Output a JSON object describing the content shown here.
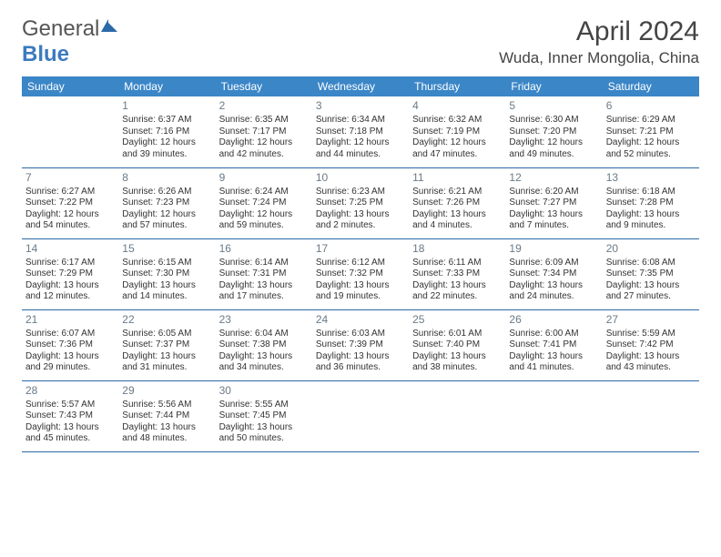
{
  "brand": {
    "part1": "General",
    "part2": "Blue"
  },
  "title": "April 2024",
  "location": "Wuda, Inner Mongolia, China",
  "colors": {
    "header_bg": "#3b86c7",
    "header_text": "#ffffff",
    "row_border": "#2b6aa8",
    "daynum_color": "#6a7a87",
    "body_text": "#333333",
    "brand_gray": "#555555",
    "brand_blue": "#3b7bbf"
  },
  "typography": {
    "base_font": "Arial",
    "title_size_pt": 22,
    "location_size_pt": 13,
    "header_size_pt": 9,
    "cell_size_pt": 7.5
  },
  "days_of_week": [
    "Sunday",
    "Monday",
    "Tuesday",
    "Wednesday",
    "Thursday",
    "Friday",
    "Saturday"
  ],
  "weeks": [
    [
      null,
      {
        "n": "1",
        "sr": "Sunrise: 6:37 AM",
        "ss": "Sunset: 7:16 PM",
        "dl": "Daylight: 12 hours and 39 minutes."
      },
      {
        "n": "2",
        "sr": "Sunrise: 6:35 AM",
        "ss": "Sunset: 7:17 PM",
        "dl": "Daylight: 12 hours and 42 minutes."
      },
      {
        "n": "3",
        "sr": "Sunrise: 6:34 AM",
        "ss": "Sunset: 7:18 PM",
        "dl": "Daylight: 12 hours and 44 minutes."
      },
      {
        "n": "4",
        "sr": "Sunrise: 6:32 AM",
        "ss": "Sunset: 7:19 PM",
        "dl": "Daylight: 12 hours and 47 minutes."
      },
      {
        "n": "5",
        "sr": "Sunrise: 6:30 AM",
        "ss": "Sunset: 7:20 PM",
        "dl": "Daylight: 12 hours and 49 minutes."
      },
      {
        "n": "6",
        "sr": "Sunrise: 6:29 AM",
        "ss": "Sunset: 7:21 PM",
        "dl": "Daylight: 12 hours and 52 minutes."
      }
    ],
    [
      {
        "n": "7",
        "sr": "Sunrise: 6:27 AM",
        "ss": "Sunset: 7:22 PM",
        "dl": "Daylight: 12 hours and 54 minutes."
      },
      {
        "n": "8",
        "sr": "Sunrise: 6:26 AM",
        "ss": "Sunset: 7:23 PM",
        "dl": "Daylight: 12 hours and 57 minutes."
      },
      {
        "n": "9",
        "sr": "Sunrise: 6:24 AM",
        "ss": "Sunset: 7:24 PM",
        "dl": "Daylight: 12 hours and 59 minutes."
      },
      {
        "n": "10",
        "sr": "Sunrise: 6:23 AM",
        "ss": "Sunset: 7:25 PM",
        "dl": "Daylight: 13 hours and 2 minutes."
      },
      {
        "n": "11",
        "sr": "Sunrise: 6:21 AM",
        "ss": "Sunset: 7:26 PM",
        "dl": "Daylight: 13 hours and 4 minutes."
      },
      {
        "n": "12",
        "sr": "Sunrise: 6:20 AM",
        "ss": "Sunset: 7:27 PM",
        "dl": "Daylight: 13 hours and 7 minutes."
      },
      {
        "n": "13",
        "sr": "Sunrise: 6:18 AM",
        "ss": "Sunset: 7:28 PM",
        "dl": "Daylight: 13 hours and 9 minutes."
      }
    ],
    [
      {
        "n": "14",
        "sr": "Sunrise: 6:17 AM",
        "ss": "Sunset: 7:29 PM",
        "dl": "Daylight: 13 hours and 12 minutes."
      },
      {
        "n": "15",
        "sr": "Sunrise: 6:15 AM",
        "ss": "Sunset: 7:30 PM",
        "dl": "Daylight: 13 hours and 14 minutes."
      },
      {
        "n": "16",
        "sr": "Sunrise: 6:14 AM",
        "ss": "Sunset: 7:31 PM",
        "dl": "Daylight: 13 hours and 17 minutes."
      },
      {
        "n": "17",
        "sr": "Sunrise: 6:12 AM",
        "ss": "Sunset: 7:32 PM",
        "dl": "Daylight: 13 hours and 19 minutes."
      },
      {
        "n": "18",
        "sr": "Sunrise: 6:11 AM",
        "ss": "Sunset: 7:33 PM",
        "dl": "Daylight: 13 hours and 22 minutes."
      },
      {
        "n": "19",
        "sr": "Sunrise: 6:09 AM",
        "ss": "Sunset: 7:34 PM",
        "dl": "Daylight: 13 hours and 24 minutes."
      },
      {
        "n": "20",
        "sr": "Sunrise: 6:08 AM",
        "ss": "Sunset: 7:35 PM",
        "dl": "Daylight: 13 hours and 27 minutes."
      }
    ],
    [
      {
        "n": "21",
        "sr": "Sunrise: 6:07 AM",
        "ss": "Sunset: 7:36 PM",
        "dl": "Daylight: 13 hours and 29 minutes."
      },
      {
        "n": "22",
        "sr": "Sunrise: 6:05 AM",
        "ss": "Sunset: 7:37 PM",
        "dl": "Daylight: 13 hours and 31 minutes."
      },
      {
        "n": "23",
        "sr": "Sunrise: 6:04 AM",
        "ss": "Sunset: 7:38 PM",
        "dl": "Daylight: 13 hours and 34 minutes."
      },
      {
        "n": "24",
        "sr": "Sunrise: 6:03 AM",
        "ss": "Sunset: 7:39 PM",
        "dl": "Daylight: 13 hours and 36 minutes."
      },
      {
        "n": "25",
        "sr": "Sunrise: 6:01 AM",
        "ss": "Sunset: 7:40 PM",
        "dl": "Daylight: 13 hours and 38 minutes."
      },
      {
        "n": "26",
        "sr": "Sunrise: 6:00 AM",
        "ss": "Sunset: 7:41 PM",
        "dl": "Daylight: 13 hours and 41 minutes."
      },
      {
        "n": "27",
        "sr": "Sunrise: 5:59 AM",
        "ss": "Sunset: 7:42 PM",
        "dl": "Daylight: 13 hours and 43 minutes."
      }
    ],
    [
      {
        "n": "28",
        "sr": "Sunrise: 5:57 AM",
        "ss": "Sunset: 7:43 PM",
        "dl": "Daylight: 13 hours and 45 minutes."
      },
      {
        "n": "29",
        "sr": "Sunrise: 5:56 AM",
        "ss": "Sunset: 7:44 PM",
        "dl": "Daylight: 13 hours and 48 minutes."
      },
      {
        "n": "30",
        "sr": "Sunrise: 5:55 AM",
        "ss": "Sunset: 7:45 PM",
        "dl": "Daylight: 13 hours and 50 minutes."
      },
      null,
      null,
      null,
      null
    ]
  ]
}
